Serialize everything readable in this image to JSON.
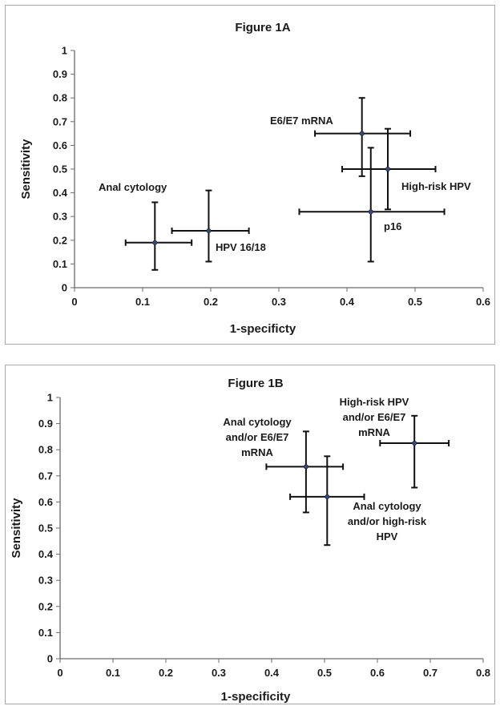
{
  "chart_data": [
    {
      "type": "scatter",
      "title": "Figure 1A",
      "xlabel": "1-specificty",
      "ylabel": "Sensitivity",
      "xlim": [
        0,
        0.6
      ],
      "ylim": [
        0,
        1
      ],
      "xticks": [
        "0",
        "0.1",
        "0.2",
        "0.3",
        "0.4",
        "0.5",
        "0.6"
      ],
      "yticks": [
        "0",
        "0.1",
        "0.2",
        "0.3",
        "0.4",
        "0.5",
        "0.6",
        "0.7",
        "0.8",
        "0.9",
        "1"
      ],
      "grid": false,
      "points": [
        {
          "label": "Anal cytology",
          "x": 0.118,
          "y": 0.19,
          "x_err": [
            0.075,
            0.172
          ],
          "y_err": [
            0.075,
            0.36
          ]
        },
        {
          "label": "HPV 16/18",
          "x": 0.197,
          "y": 0.24,
          "x_err": [
            0.143,
            0.256
          ],
          "y_err": [
            0.11,
            0.41
          ]
        },
        {
          "label": "E6/E7 mRNA",
          "x": 0.422,
          "y": 0.65,
          "x_err": [
            0.353,
            0.493
          ],
          "y_err": [
            0.47,
            0.8
          ]
        },
        {
          "label": "High-risk HPV",
          "x": 0.46,
          "y": 0.5,
          "x_err": [
            0.393,
            0.53
          ],
          "y_err": [
            0.33,
            0.67
          ]
        },
        {
          "label": "p16",
          "x": 0.435,
          "y": 0.32,
          "x_err": [
            0.33,
            0.543
          ],
          "y_err": [
            0.11,
            0.59
          ]
        }
      ]
    },
    {
      "type": "scatter",
      "title": "Figure 1B",
      "xlabel": "1-specificity",
      "ylabel": "Sensitivity",
      "xlim": [
        0,
        0.8
      ],
      "ylim": [
        0,
        1
      ],
      "xticks": [
        "0",
        "0.1",
        "0.2",
        "0.3",
        "0.4",
        "0.5",
        "0.6",
        "0.7",
        "0.8"
      ],
      "yticks": [
        "0",
        "0.1",
        "0.2",
        "0.3",
        "0.4",
        "0.5",
        "0.6",
        "0.7",
        "0.8",
        "0.9",
        "1"
      ],
      "grid": false,
      "points": [
        {
          "label": "Anal cytology and/or E6/E7 mRNA",
          "label_lines": [
            "Anal cytology",
            "and/or E6/E7",
            "mRNA"
          ],
          "x": 0.465,
          "y": 0.735,
          "x_err": [
            0.39,
            0.535
          ],
          "y_err": [
            0.56,
            0.87
          ]
        },
        {
          "label": "High-risk HPV and/or E6/E7 mRNA",
          "label_lines": [
            "High-risk HPV",
            "and/or E6/E7",
            "mRNA"
          ],
          "x": 0.67,
          "y": 0.825,
          "x_err": [
            0.605,
            0.735
          ],
          "y_err": [
            0.655,
            0.93
          ]
        },
        {
          "label": "Anal cytology and/or high-risk HPV",
          "label_lines": [
            "Anal cytology",
            "and/or high-risk",
            "HPV"
          ],
          "x": 0.505,
          "y": 0.62,
          "x_err": [
            0.435,
            0.575
          ],
          "y_err": [
            0.435,
            0.775
          ]
        }
      ]
    }
  ]
}
